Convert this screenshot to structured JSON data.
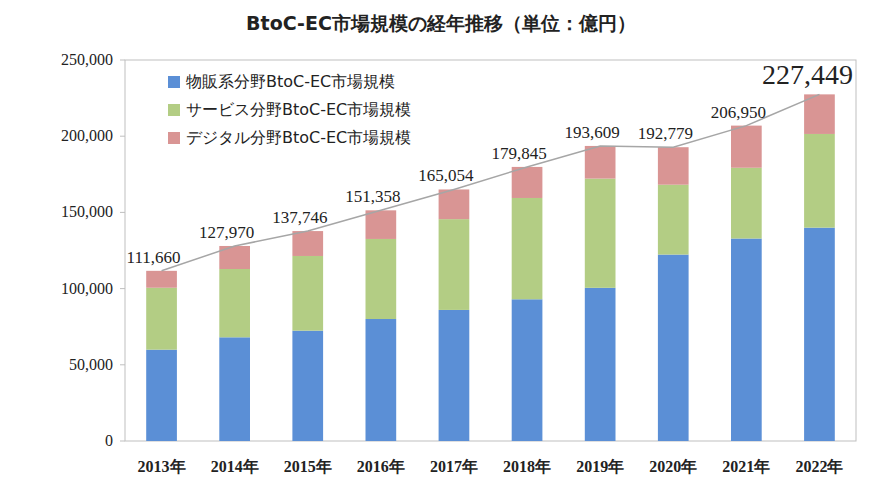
{
  "chart_data": {
    "type": "bar",
    "title": "BtoC-EC市場規模の経年推移（単位：億円）",
    "categories": [
      "2013年",
      "2014年",
      "2015年",
      "2016年",
      "2017年",
      "2018年",
      "2019年",
      "2020年",
      "2021年",
      "2022年"
    ],
    "stacked": true,
    "grid": false,
    "legend": "top-left",
    "ylim": [
      0,
      250000
    ],
    "yticks": [
      0,
      {
        "value": 50000,
        "label": "50,000"
      },
      {
        "value": 100000,
        "label": "100,000"
      },
      {
        "value": 150000,
        "label": "150,000"
      },
      {
        "value": 200000,
        "label": "200,000"
      },
      {
        "value": 250000,
        "label": "250,000"
      }
    ],
    "series": [
      {
        "name": "物販系分野BtoC-EC市場規模",
        "color": "#5b8fd6",
        "values": [
          59931,
          68043,
          72398,
          80043,
          86008,
          92992,
          100515,
          122333,
          132865,
          139997
        ]
      },
      {
        "name": "サービス分野BtoC-EC市場規模",
        "color": "#b3cd84",
        "values": [
          40629,
          44816,
          49014,
          52532,
          59568,
          66471,
          71672,
          45832,
          46424,
          61477
        ]
      },
      {
        "name": "デジタル分野BtoC-EC市場規模",
        "color": "#d99594",
        "values": [
          11100,
          15111,
          16334,
          18783,
          19478,
          20382,
          21422,
          24614,
          27661,
          25975
        ]
      },
      {
        "type": "line",
        "color": "#a6a6a6",
        "data_labels": true,
        "values": [
          111660,
          127970,
          137746,
          151358,
          165054,
          179845,
          193609,
          192779,
          206950,
          227449
        ],
        "value_labels": [
          "111,660",
          "127,970",
          "137,746",
          "151,358",
          "165,054",
          "179,845",
          "193,609",
          "192,779",
          "206,950",
          "227,449"
        ]
      }
    ]
  }
}
